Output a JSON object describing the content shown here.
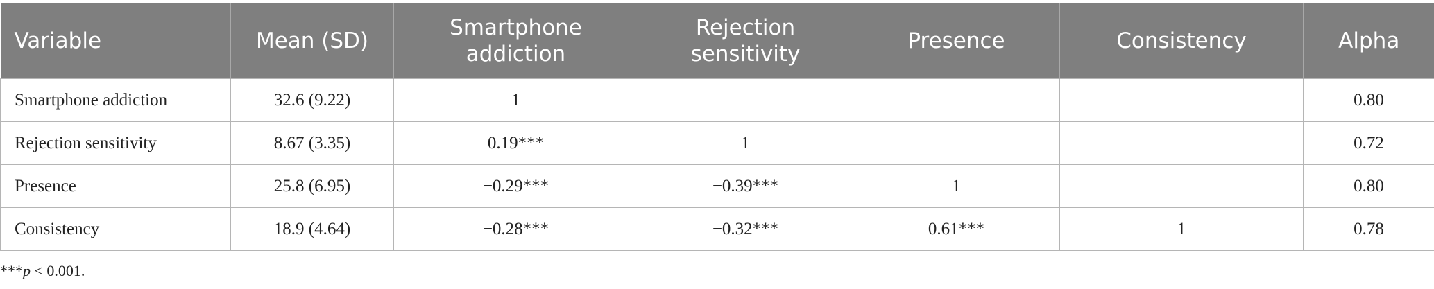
{
  "table": {
    "header": [
      "Variable",
      "Mean (SD)",
      "Smartphone addiction",
      "Rejection sensitivity",
      "Presence",
      "Consistency",
      "Alpha"
    ],
    "rows": [
      [
        "Smartphone addiction",
        "32.6 (9.22)",
        "1",
        null,
        null,
        null,
        "0.80"
      ],
      [
        "Rejection sensitivity",
        "8.67 (3.35)",
        "0.19***",
        "1",
        null,
        null,
        "0.72"
      ],
      [
        "Presence",
        "25.8 (6.95)",
        "−0.29***",
        "−0.39***",
        "1",
        null,
        "0.80"
      ],
      [
        "Consistency",
        "18.9 (4.64)",
        "−0.28***",
        "−0.32***",
        "0.61***",
        "1",
        "0.78"
      ]
    ]
  },
  "footnote": [
    "***",
    "p",
    " < 0.001."
  ]
}
